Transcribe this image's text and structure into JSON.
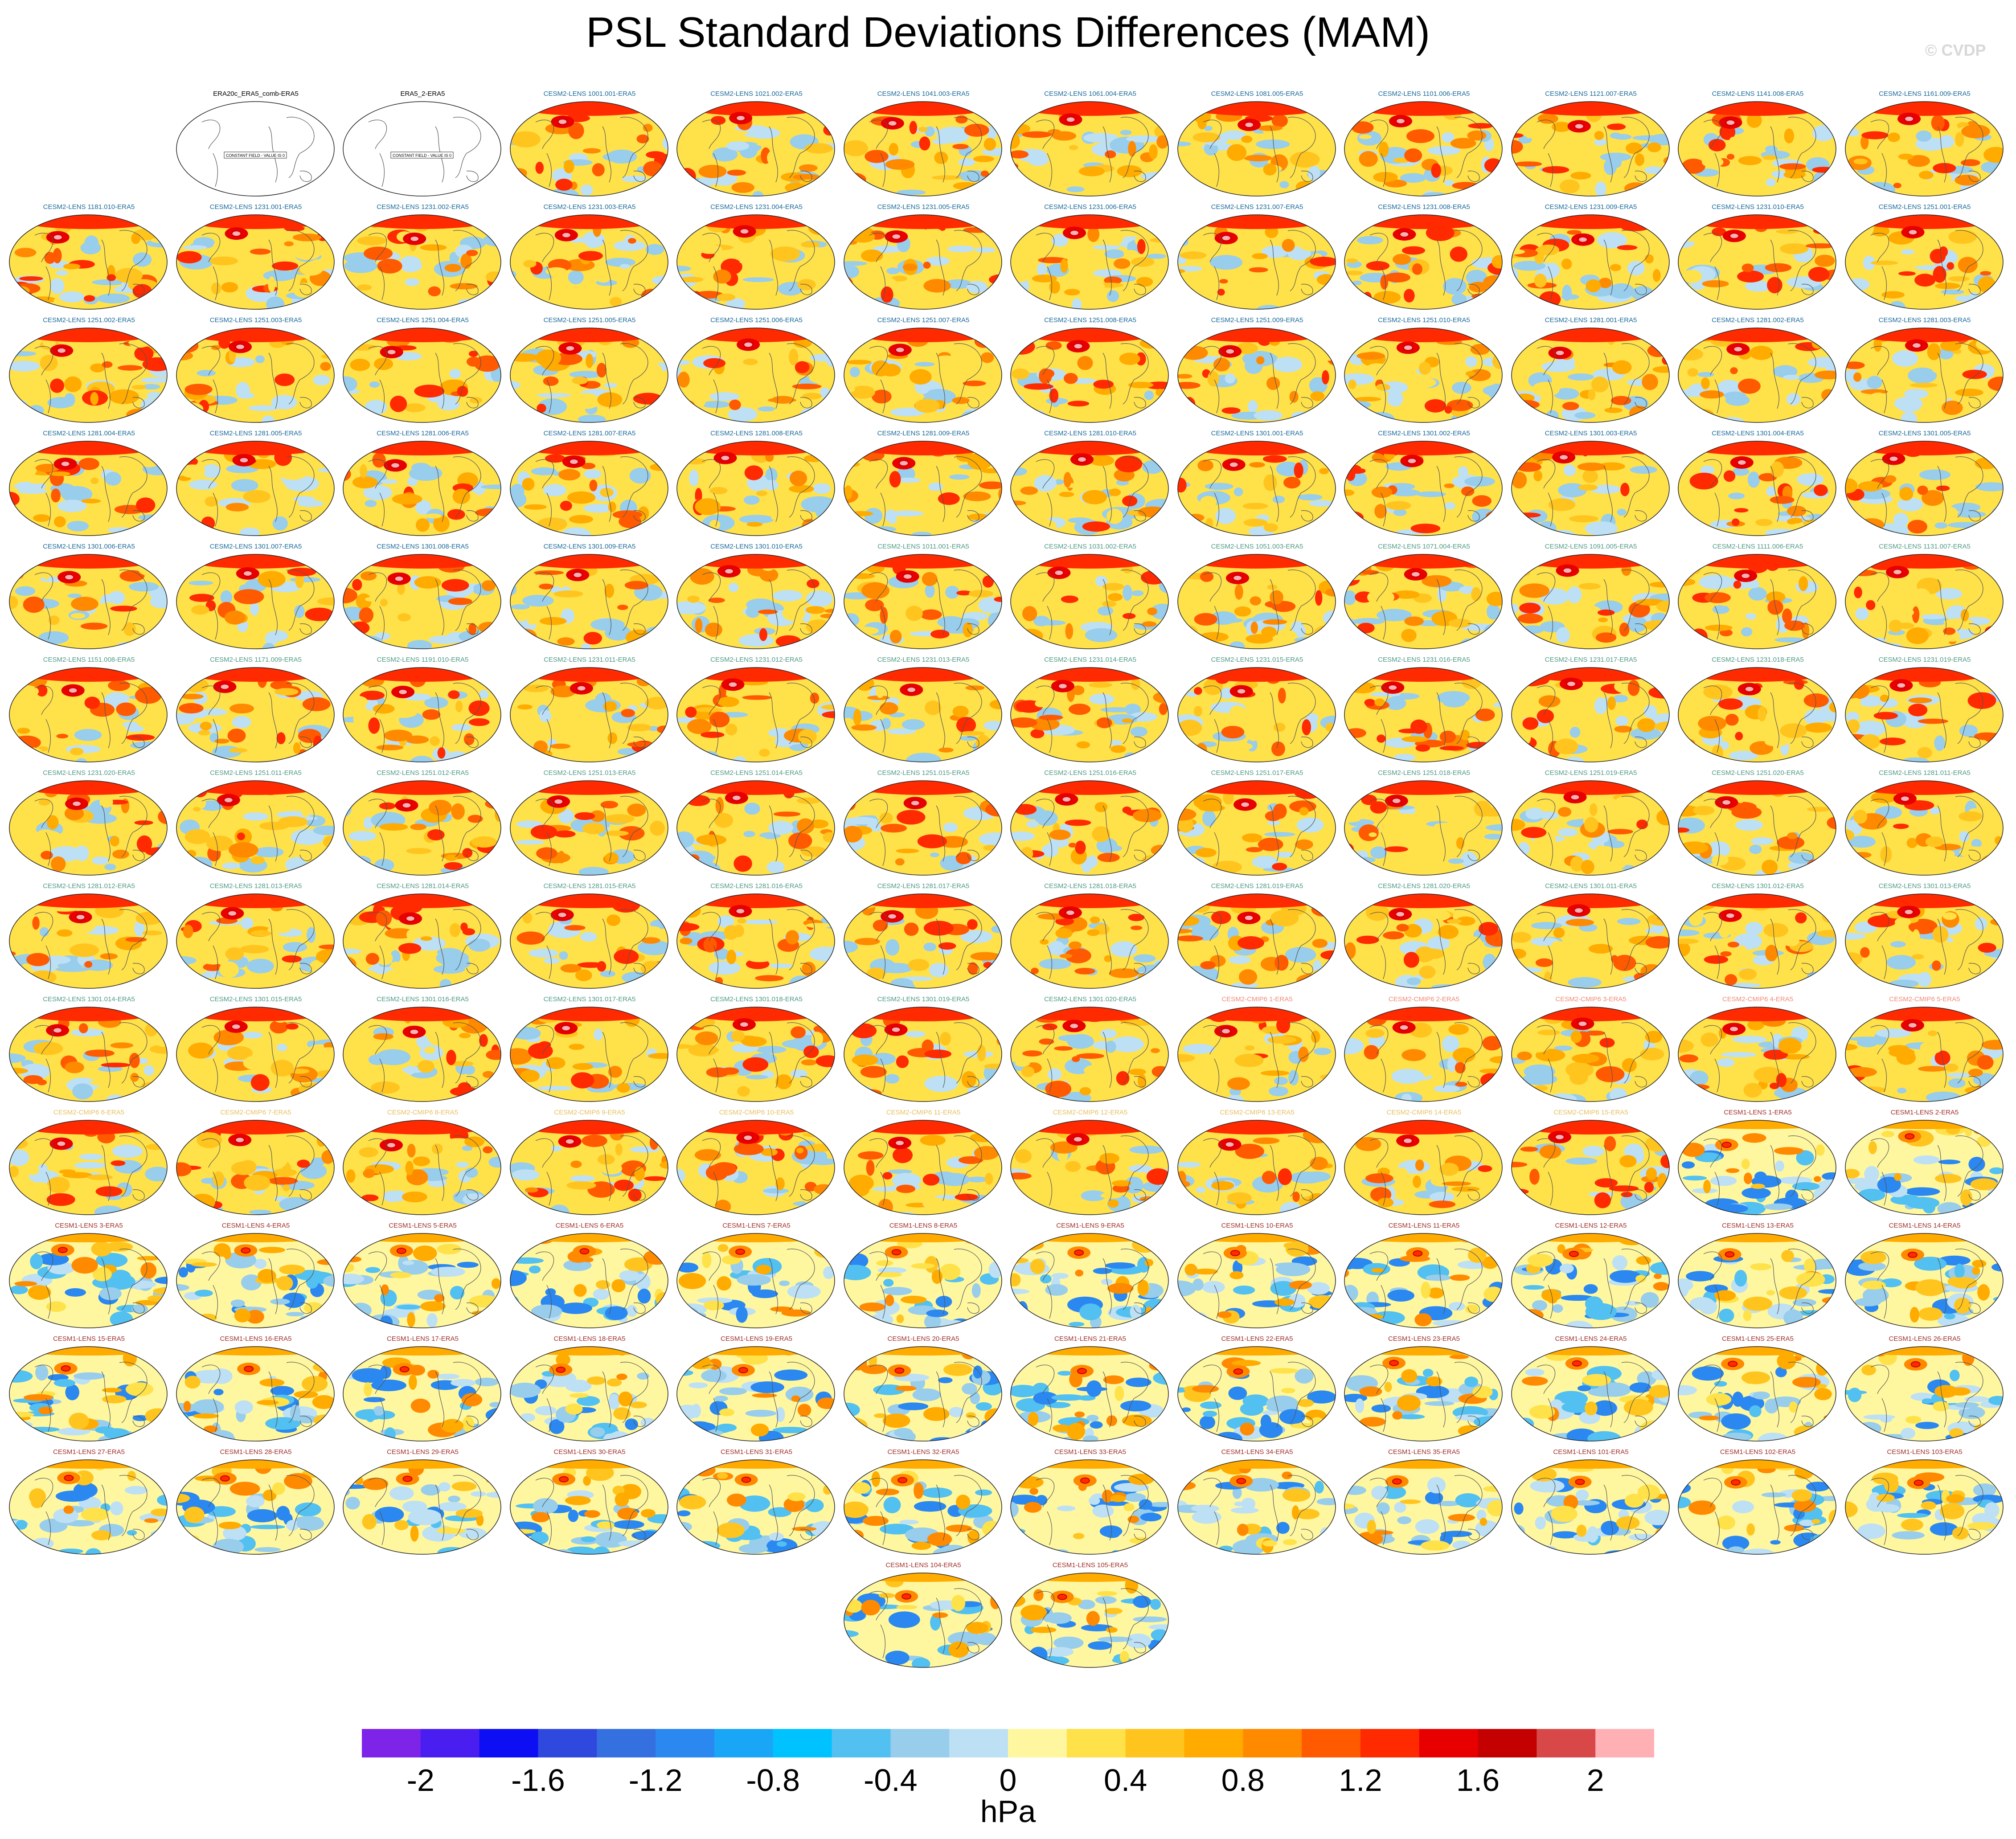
{
  "title": "PSL Standard Deviations Differences (MAM)",
  "copyright": "© CVDP",
  "colorbar": {
    "units": "hPa",
    "tick_labels": [
      "-2",
      "-1.6",
      "-1.2",
      "-0.8",
      "-0.4",
      "0",
      "0.4",
      "0.8",
      "1.2",
      "1.6",
      "2"
    ],
    "colors": [
      "#7d24e8",
      "#4a1ef0",
      "#0e0ef4",
      "#2f48de",
      "#3570e0",
      "#2a88f0",
      "#1aa6f6",
      "#00c2ff",
      "#52c0f0",
      "#98cdec",
      "#bde0f5",
      "#fff7a0",
      "#ffe14a",
      "#ffc51e",
      "#ffab00",
      "#ff8a00",
      "#ff5a00",
      "#ff2a00",
      "#e80000",
      "#c40000",
      "#d84848",
      "#ffb0b5"
    ]
  },
  "panels": [
    {
      "label": "ERA20c_ERA5_comb-ERA5",
      "color": "#000000",
      "blank": true,
      "constant_text": "CONSTANT FIELD - VALUE IS 0"
    },
    {
      "label": "ERA5_2-ERA5",
      "color": "#000000",
      "blank": true,
      "constant_text": "CONSTANT FIELD - VALUE IS 0"
    },
    {
      "label": "CESM2-LENS 1001.001-ERA5",
      "color": "#1a6a9a"
    },
    {
      "label": "CESM2-LENS 1021.002-ERA5",
      "color": "#1a6a9a"
    },
    {
      "label": "CESM2-LENS 1041.003-ERA5",
      "color": "#1a6a9a"
    },
    {
      "label": "CESM2-LENS 1061.004-ERA5",
      "color": "#1a6a9a"
    },
    {
      "label": "CESM2-LENS 1081.005-ERA5",
      "color": "#1a6a9a"
    },
    {
      "label": "CESM2-LENS 1101.006-ERA5",
      "color": "#1a6a9a"
    },
    {
      "label": "CESM2-LENS 1121.007-ERA5",
      "color": "#1a6a9a"
    },
    {
      "label": "CESM2-LENS 1141.008-ERA5",
      "color": "#1a6a9a"
    },
    {
      "label": "CESM2-LENS 1161.009-ERA5",
      "color": "#1a6a9a"
    },
    {
      "label": "CESM2-LENS 1181.010-ERA5",
      "color": "#1a6a9a"
    },
    {
      "label": "CESM2-LENS 1231.001-ERA5",
      "color": "#1a6a9a"
    },
    {
      "label": "CESM2-LENS 1231.002-ERA5",
      "color": "#1a6a9a"
    },
    {
      "label": "CESM2-LENS 1231.003-ERA5",
      "color": "#1a6a9a"
    },
    {
      "label": "CESM2-LENS 1231.004-ERA5",
      "color": "#1a6a9a"
    },
    {
      "label": "CESM2-LENS 1231.005-ERA5",
      "color": "#1a6a9a"
    },
    {
      "label": "CESM2-LENS 1231.006-ERA5",
      "color": "#1a6a9a"
    },
    {
      "label": "CESM2-LENS 1231.007-ERA5",
      "color": "#1a6a9a"
    },
    {
      "label": "CESM2-LENS 1231.008-ERA5",
      "color": "#1a6a9a"
    },
    {
      "label": "CESM2-LENS 1231.009-ERA5",
      "color": "#1a6a9a"
    },
    {
      "label": "CESM2-LENS 1231.010-ERA5",
      "color": "#1a6a9a"
    },
    {
      "label": "CESM2-LENS 1251.001-ERA5",
      "color": "#1a6a9a"
    },
    {
      "label": "CESM2-LENS 1251.002-ERA5",
      "color": "#1a6a9a"
    },
    {
      "label": "CESM2-LENS 1251.003-ERA5",
      "color": "#1a6a9a"
    },
    {
      "label": "CESM2-LENS 1251.004-ERA5",
      "color": "#1a6a9a"
    },
    {
      "label": "CESM2-LENS 1251.005-ERA5",
      "color": "#1a6a9a"
    },
    {
      "label": "CESM2-LENS 1251.006-ERA5",
      "color": "#1a6a9a"
    },
    {
      "label": "CESM2-LENS 1251.007-ERA5",
      "color": "#1a6a9a"
    },
    {
      "label": "CESM2-LENS 1251.008-ERA5",
      "color": "#1a6a9a"
    },
    {
      "label": "CESM2-LENS 1251.009-ERA5",
      "color": "#1a6a9a"
    },
    {
      "label": "CESM2-LENS 1251.010-ERA5",
      "color": "#1a6a9a"
    },
    {
      "label": "CESM2-LENS 1281.001-ERA5",
      "color": "#1a6a9a"
    },
    {
      "label": "CESM2-LENS 1281.002-ERA5",
      "color": "#1a6a9a"
    },
    {
      "label": "CESM2-LENS 1281.003-ERA5",
      "color": "#1a6a9a"
    },
    {
      "label": "CESM2-LENS 1281.004-ERA5",
      "color": "#1a6a9a"
    },
    {
      "label": "CESM2-LENS 1281.005-ERA5",
      "color": "#1a6a9a"
    },
    {
      "label": "CESM2-LENS 1281.006-ERA5",
      "color": "#1a6a9a"
    },
    {
      "label": "CESM2-LENS 1281.007-ERA5",
      "color": "#1a6a9a"
    },
    {
      "label": "CESM2-LENS 1281.008-ERA5",
      "color": "#1a6a9a"
    },
    {
      "label": "CESM2-LENS 1281.009-ERA5",
      "color": "#1a6a9a"
    },
    {
      "label": "CESM2-LENS 1281.010-ERA5",
      "color": "#1a6a9a"
    },
    {
      "label": "CESM2-LENS 1301.001-ERA5",
      "color": "#1a6a9a"
    },
    {
      "label": "CESM2-LENS 1301.002-ERA5",
      "color": "#1a6a9a"
    },
    {
      "label": "CESM2-LENS 1301.003-ERA5",
      "color": "#1a6a9a"
    },
    {
      "label": "CESM2-LENS 1301.004-ERA5",
      "color": "#1a6a9a"
    },
    {
      "label": "CESM2-LENS 1301.005-ERA5",
      "color": "#1a6a9a"
    },
    {
      "label": "CESM2-LENS 1301.006-ERA5",
      "color": "#1a6a9a"
    },
    {
      "label": "CESM2-LENS 1301.007-ERA5",
      "color": "#1a6a9a"
    },
    {
      "label": "CESM2-LENS 1301.008-ERA5",
      "color": "#1a6a9a"
    },
    {
      "label": "CESM2-LENS 1301.009-ERA5",
      "color": "#1a6a9a"
    },
    {
      "label": "CESM2-LENS 1301.010-ERA5",
      "color": "#1a6a9a"
    },
    {
      "label": "CESM2-LENS 1011.001-ERA5",
      "color": "#4f9a86"
    },
    {
      "label": "CESM2-LENS 1031.002-ERA5",
      "color": "#4f9a86"
    },
    {
      "label": "CESM2-LENS 1051.003-ERA5",
      "color": "#4f9a86"
    },
    {
      "label": "CESM2-LENS 1071.004-ERA5",
      "color": "#4f9a86"
    },
    {
      "label": "CESM2-LENS 1091.005-ERA5",
      "color": "#4f9a86"
    },
    {
      "label": "CESM2-LENS 1111.006-ERA5",
      "color": "#4f9a86"
    },
    {
      "label": "CESM2-LENS 1131.007-ERA5",
      "color": "#4f9a86"
    },
    {
      "label": "CESM2-LENS 1151.008-ERA5",
      "color": "#4f9a86"
    },
    {
      "label": "CESM2-LENS 1171.009-ERA5",
      "color": "#4f9a86"
    },
    {
      "label": "CESM2-LENS 1191.010-ERA5",
      "color": "#4f9a86"
    },
    {
      "label": "CESM2-LENS 1231.011-ERA5",
      "color": "#4f9a86"
    },
    {
      "label": "CESM2-LENS 1231.012-ERA5",
      "color": "#4f9a86"
    },
    {
      "label": "CESM2-LENS 1231.013-ERA5",
      "color": "#4f9a86"
    },
    {
      "label": "CESM2-LENS 1231.014-ERA5",
      "color": "#4f9a86"
    },
    {
      "label": "CESM2-LENS 1231.015-ERA5",
      "color": "#4f9a86"
    },
    {
      "label": "CESM2-LENS 1231.016-ERA5",
      "color": "#4f9a86"
    },
    {
      "label": "CESM2-LENS 1231.017-ERA5",
      "color": "#4f9a86"
    },
    {
      "label": "CESM2-LENS 1231.018-ERA5",
      "color": "#4f9a86"
    },
    {
      "label": "CESM2-LENS 1231.019-ERA5",
      "color": "#4f9a86"
    },
    {
      "label": "CESM2-LENS 1231.020-ERA5",
      "color": "#4f9a86"
    },
    {
      "label": "CESM2-LENS 1251.011-ERA5",
      "color": "#4f9a86"
    },
    {
      "label": "CESM2-LENS 1251.012-ERA5",
      "color": "#4f9a86"
    },
    {
      "label": "CESM2-LENS 1251.013-ERA5",
      "color": "#4f9a86"
    },
    {
      "label": "CESM2-LENS 1251.014-ERA5",
      "color": "#4f9a86"
    },
    {
      "label": "CESM2-LENS 1251.015-ERA5",
      "color": "#4f9a86"
    },
    {
      "label": "CESM2-LENS 1251.016-ERA5",
      "color": "#4f9a86"
    },
    {
      "label": "CESM2-LENS 1251.017-ERA5",
      "color": "#4f9a86"
    },
    {
      "label": "CESM2-LENS 1251.018-ERA5",
      "color": "#4f9a86"
    },
    {
      "label": "CESM2-LENS 1251.019-ERA5",
      "color": "#4f9a86"
    },
    {
      "label": "CESM2-LENS 1251.020-ERA5",
      "color": "#4f9a86"
    },
    {
      "label": "CESM2-LENS 1281.011-ERA5",
      "color": "#4f9a86"
    },
    {
      "label": "CESM2-LENS 1281.012-ERA5",
      "color": "#4f9a86"
    },
    {
      "label": "CESM2-LENS 1281.013-ERA5",
      "color": "#4f9a86"
    },
    {
      "label": "CESM2-LENS 1281.014-ERA5",
      "color": "#4f9a86"
    },
    {
      "label": "CESM2-LENS 1281.015-ERA5",
      "color": "#4f9a86"
    },
    {
      "label": "CESM2-LENS 1281.016-ERA5",
      "color": "#4f9a86"
    },
    {
      "label": "CESM2-LENS 1281.017-ERA5",
      "color": "#4f9a86"
    },
    {
      "label": "CESM2-LENS 1281.018-ERA5",
      "color": "#4f9a86"
    },
    {
      "label": "CESM2-LENS 1281.019-ERA5",
      "color": "#4f9a86"
    },
    {
      "label": "CESM2-LENS 1281.020-ERA5",
      "color": "#4f9a86"
    },
    {
      "label": "CESM2-LENS 1301.011-ERA5",
      "color": "#4f9a86"
    },
    {
      "label": "CESM2-LENS 1301.012-ERA5",
      "color": "#4f9a86"
    },
    {
      "label": "CESM2-LENS 1301.013-ERA5",
      "color": "#4f9a86"
    },
    {
      "label": "CESM2-LENS 1301.014-ERA5",
      "color": "#4f9a86"
    },
    {
      "label": "CESM2-LENS 1301.015-ERA5",
      "color": "#4f9a86"
    },
    {
      "label": "CESM2-LENS 1301.016-ERA5",
      "color": "#4f9a86"
    },
    {
      "label": "CESM2-LENS 1301.017-ERA5",
      "color": "#4f9a86"
    },
    {
      "label": "CESM2-LENS 1301.018-ERA5",
      "color": "#4f9a86"
    },
    {
      "label": "CESM2-LENS 1301.019-ERA5",
      "color": "#4f9a86"
    },
    {
      "label": "CESM2-LENS 1301.020-ERA5",
      "color": "#4f9a86"
    },
    {
      "label": "CESM2-CMIP6 1-ERA5",
      "color": "#f08a78"
    },
    {
      "label": "CESM2-CMIP6 2-ERA5",
      "color": "#f08a78"
    },
    {
      "label": "CESM2-CMIP6 3-ERA5",
      "color": "#f08a78"
    },
    {
      "label": "CESM2-CMIP6 4-ERA5",
      "color": "#f08a78"
    },
    {
      "label": "CESM2-CMIP6 5-ERA5",
      "color": "#f08a78"
    },
    {
      "label": "CESM2-CMIP6 6-ERA5",
      "color": "#e8c060"
    },
    {
      "label": "CESM2-CMIP6 7-ERA5",
      "color": "#e8c060"
    },
    {
      "label": "CESM2-CMIP6 8-ERA5",
      "color": "#e8c060"
    },
    {
      "label": "CESM2-CMIP6 9-ERA5",
      "color": "#e8c060"
    },
    {
      "label": "CESM2-CMIP6 10-ERA5",
      "color": "#e8c060"
    },
    {
      "label": "CESM2-CMIP6 11-ERA5",
      "color": "#e8c060"
    },
    {
      "label": "CESM2-CMIP6 12-ERA5",
      "color": "#e8c060"
    },
    {
      "label": "CESM2-CMIP6 13-ERA5",
      "color": "#e8c060"
    },
    {
      "label": "CESM2-CMIP6 14-ERA5",
      "color": "#e8c060"
    },
    {
      "label": "CESM2-CMIP6 15-ERA5",
      "color": "#e8c060"
    },
    {
      "label": "CESM1-LENS 1-ERA5",
      "color": "#a0302a"
    },
    {
      "label": "CESM1-LENS 2-ERA5",
      "color": "#a0302a"
    },
    {
      "label": "CESM1-LENS 3-ERA5",
      "color": "#a0302a"
    },
    {
      "label": "CESM1-LENS 4-ERA5",
      "color": "#a0302a"
    },
    {
      "label": "CESM1-LENS 5-ERA5",
      "color": "#a0302a"
    },
    {
      "label": "CESM1-LENS 6-ERA5",
      "color": "#a0302a"
    },
    {
      "label": "CESM1-LENS 7-ERA5",
      "color": "#a0302a"
    },
    {
      "label": "CESM1-LENS 8-ERA5",
      "color": "#a0302a"
    },
    {
      "label": "CESM1-LENS 9-ERA5",
      "color": "#a0302a"
    },
    {
      "label": "CESM1-LENS 10-ERA5",
      "color": "#a0302a"
    },
    {
      "label": "CESM1-LENS 11-ERA5",
      "color": "#a0302a"
    },
    {
      "label": "CESM1-LENS 12-ERA5",
      "color": "#a0302a"
    },
    {
      "label": "CESM1-LENS 13-ERA5",
      "color": "#a0302a"
    },
    {
      "label": "CESM1-LENS 14-ERA5",
      "color": "#a0302a"
    },
    {
      "label": "CESM1-LENS 15-ERA5",
      "color": "#a0302a"
    },
    {
      "label": "CESM1-LENS 16-ERA5",
      "color": "#a0302a"
    },
    {
      "label": "CESM1-LENS 17-ERA5",
      "color": "#a0302a"
    },
    {
      "label": "CESM1-LENS 18-ERA5",
      "color": "#a0302a"
    },
    {
      "label": "CESM1-LENS 19-ERA5",
      "color": "#a0302a"
    },
    {
      "label": "CESM1-LENS 20-ERA5",
      "color": "#a0302a"
    },
    {
      "label": "CESM1-LENS 21-ERA5",
      "color": "#a0302a"
    },
    {
      "label": "CESM1-LENS 22-ERA5",
      "color": "#a0302a"
    },
    {
      "label": "CESM1-LENS 23-ERA5",
      "color": "#a0302a"
    },
    {
      "label": "CESM1-LENS 24-ERA5",
      "color": "#a0302a"
    },
    {
      "label": "CESM1-LENS 25-ERA5",
      "color": "#a0302a"
    },
    {
      "label": "CESM1-LENS 26-ERA5",
      "color": "#a0302a"
    },
    {
      "label": "CESM1-LENS 27-ERA5",
      "color": "#a0302a"
    },
    {
      "label": "CESM1-LENS 28-ERA5",
      "color": "#a0302a"
    },
    {
      "label": "CESM1-LENS 29-ERA5",
      "color": "#a0302a"
    },
    {
      "label": "CESM1-LENS 30-ERA5",
      "color": "#a0302a"
    },
    {
      "label": "CESM1-LENS 31-ERA5",
      "color": "#a0302a"
    },
    {
      "label": "CESM1-LENS 32-ERA5",
      "color": "#a0302a"
    },
    {
      "label": "CESM1-LENS 33-ERA5",
      "color": "#a0302a"
    },
    {
      "label": "CESM1-LENS 34-ERA5",
      "color": "#a0302a"
    },
    {
      "label": "CESM1-LENS 35-ERA5",
      "color": "#a0302a"
    },
    {
      "label": "CESM1-LENS 101-ERA5",
      "color": "#a0302a"
    },
    {
      "label": "CESM1-LENS 102-ERA5",
      "color": "#a0302a"
    },
    {
      "label": "CESM1-LENS 103-ERA5",
      "color": "#a0302a"
    },
    {
      "label": "CESM1-LENS 104-ERA5",
      "color": "#a0302a"
    },
    {
      "label": "CESM1-LENS 105-ERA5",
      "color": "#a0302a"
    }
  ]
}
